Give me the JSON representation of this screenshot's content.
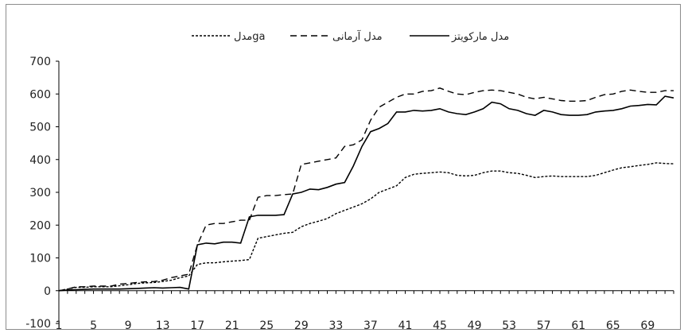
{
  "chart_data": {
    "type": "line",
    "x_tick_labels": [
      "1",
      "5",
      "9",
      "13",
      "17",
      "21",
      "25",
      "29",
      "33",
      "37",
      "41",
      "45",
      "49",
      "53",
      "57",
      "61",
      "65",
      "69"
    ],
    "y_tick_labels": [
      "-100",
      "0",
      "100",
      "200",
      "300",
      "400",
      "500",
      "600",
      "700"
    ],
    "ylim": [
      -100,
      700
    ],
    "xlim": [
      1,
      72
    ],
    "legend_position": "top",
    "grid": false,
    "title": "",
    "xlabel": "",
    "ylabel": "",
    "series": [
      {
        "name": "مدل مارکویتز",
        "style": "solid",
        "color": "#000000",
        "values": [
          0,
          2,
          3,
          4,
          5,
          5,
          5,
          5,
          6,
          7,
          8,
          9,
          8,
          9,
          10,
          5,
          140,
          145,
          143,
          148,
          148,
          145,
          225,
          230,
          230,
          230,
          232,
          295,
          300,
          310,
          308,
          315,
          325,
          330,
          380,
          440,
          485,
          495,
          510,
          545,
          545,
          550,
          548,
          550,
          555,
          545,
          540,
          537,
          545,
          555,
          575,
          570,
          555,
          550,
          540,
          535,
          550,
          545,
          537,
          535,
          535,
          537,
          545,
          548,
          550,
          555,
          563,
          565,
          568,
          567,
          593,
          588
        ]
      },
      {
        "name": "مدل آرمانی",
        "style": "dashed",
        "color": "#000000",
        "values": [
          0,
          5,
          12,
          12,
          14,
          14,
          14,
          20,
          22,
          25,
          27,
          28,
          32,
          40,
          45,
          50,
          140,
          200,
          205,
          205,
          210,
          215,
          215,
          285,
          290,
          290,
          293,
          295,
          385,
          390,
          395,
          400,
          405,
          440,
          445,
          460,
          520,
          560,
          575,
          590,
          600,
          600,
          608,
          610,
          618,
          608,
          600,
          598,
          605,
          610,
          612,
          610,
          605,
          600,
          590,
          585,
          590,
          585,
          580,
          578,
          578,
          580,
          590,
          598,
          600,
          608,
          612,
          608,
          605,
          605,
          610,
          610
        ]
      },
      {
        "name": "مدلga",
        "style": "dotted",
        "color": "#000000",
        "values": [
          0,
          5,
          10,
          10,
          12,
          12,
          12,
          15,
          18,
          22,
          24,
          25,
          28,
          32,
          40,
          45,
          80,
          85,
          85,
          88,
          90,
          92,
          95,
          160,
          165,
          170,
          175,
          178,
          195,
          205,
          212,
          220,
          235,
          245,
          255,
          265,
          280,
          300,
          310,
          320,
          345,
          355,
          358,
          360,
          362,
          360,
          352,
          350,
          352,
          360,
          365,
          365,
          360,
          358,
          352,
          345,
          348,
          350,
          348,
          348,
          348,
          348,
          352,
          360,
          368,
          375,
          378,
          382,
          385,
          390,
          388,
          387
        ]
      }
    ]
  }
}
